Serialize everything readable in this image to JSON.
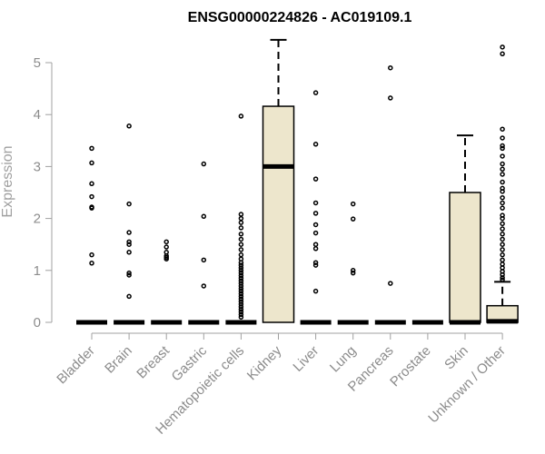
{
  "chart_data": {
    "type": "boxplot",
    "title": "ENSG00000224826 - AC019109.1",
    "ylabel": "Expression",
    "xlabel": "",
    "ylim": [
      0,
      5.5
    ],
    "yticks": [
      0,
      1,
      2,
      3,
      4,
      5
    ],
    "colors": {
      "box_fill": "#ede6cc",
      "stroke": "#000000",
      "axis": "#a0a0a0",
      "text": "#8c8c8c",
      "title": "#000000"
    },
    "categories": [
      {
        "name": "Bladder",
        "q1": 0,
        "median": 0,
        "q3": 0,
        "whisker_low": 0,
        "whisker_high": 0,
        "outliers": [
          3.35,
          3.07,
          2.67,
          2.42,
          2.22,
          2.2,
          1.3,
          1.14
        ]
      },
      {
        "name": "Brain",
        "q1": 0,
        "median": 0,
        "q3": 0,
        "whisker_low": 0,
        "whisker_high": 0,
        "outliers": [
          3.78,
          2.28,
          1.73,
          1.55,
          1.5,
          1.35,
          0.95,
          0.91,
          0.5
        ]
      },
      {
        "name": "Breast",
        "q1": 0,
        "median": 0,
        "q3": 0,
        "whisker_low": 0,
        "whisker_high": 0,
        "outliers": [
          1.55,
          1.45,
          1.35,
          1.28,
          1.25,
          1.22
        ]
      },
      {
        "name": "Gastric",
        "q1": 0,
        "median": 0,
        "q3": 0,
        "whisker_low": 0,
        "whisker_high": 0,
        "outliers": [
          3.05,
          2.04,
          1.2,
          0.7
        ]
      },
      {
        "name": "Hematopoietic cells",
        "q1": 0,
        "median": 0,
        "q3": 0,
        "whisker_low": 0,
        "whisker_high": 0,
        "outliers": [
          3.97,
          2.08,
          2.0,
          1.92,
          1.82,
          1.7,
          1.6,
          1.5,
          1.4,
          1.3,
          1.22,
          1.15,
          1.1,
          1.05,
          1.0,
          0.95,
          0.9,
          0.85,
          0.8,
          0.75,
          0.7,
          0.65,
          0.6,
          0.55,
          0.5,
          0.45,
          0.4,
          0.35,
          0.3,
          0.25,
          0.2,
          0.15,
          0.1
        ]
      },
      {
        "name": "Kidney",
        "q1": 0,
        "median": 3.0,
        "q3": 4.16,
        "whisker_low": 0,
        "whisker_high": 5.44,
        "outliers": []
      },
      {
        "name": "Liver",
        "q1": 0,
        "median": 0,
        "q3": 0,
        "whisker_low": 0,
        "whisker_high": 0,
        "outliers": [
          4.42,
          3.43,
          2.76,
          2.3,
          2.1,
          1.88,
          1.72,
          1.5,
          1.42,
          1.15,
          1.1,
          0.6
        ]
      },
      {
        "name": "Lung",
        "q1": 0,
        "median": 0,
        "q3": 0,
        "whisker_low": 0,
        "whisker_high": 0,
        "outliers": [
          2.28,
          1.99,
          1.0,
          0.95
        ]
      },
      {
        "name": "Pancreas",
        "q1": 0,
        "median": 0,
        "q3": 0,
        "whisker_low": 0,
        "whisker_high": 0,
        "outliers": [
          4.9,
          4.32,
          0.75
        ]
      },
      {
        "name": "Prostate",
        "q1": 0,
        "median": 0,
        "q3": 0,
        "whisker_low": 0,
        "whisker_high": 0,
        "outliers": []
      },
      {
        "name": "Skin",
        "q1": 0,
        "median": 0,
        "q3": 2.5,
        "whisker_low": 0,
        "whisker_high": 3.6,
        "outliers": []
      },
      {
        "name": "Unknown / Other",
        "q1": 0,
        "median": 0.02,
        "q3": 0.32,
        "whisker_low": 0,
        "whisker_high": 0.78,
        "outliers": [
          5.3,
          5.17,
          3.72,
          3.55,
          3.4,
          3.35,
          3.2,
          3.05,
          2.95,
          2.85,
          2.7,
          2.58,
          2.52,
          2.4,
          2.3,
          2.2,
          2.06,
          2.0,
          1.9,
          1.8,
          1.7,
          1.6,
          1.5,
          1.4,
          1.3,
          1.2,
          1.12,
          1.05,
          0.98,
          0.92,
          0.86,
          0.82
        ]
      }
    ]
  }
}
